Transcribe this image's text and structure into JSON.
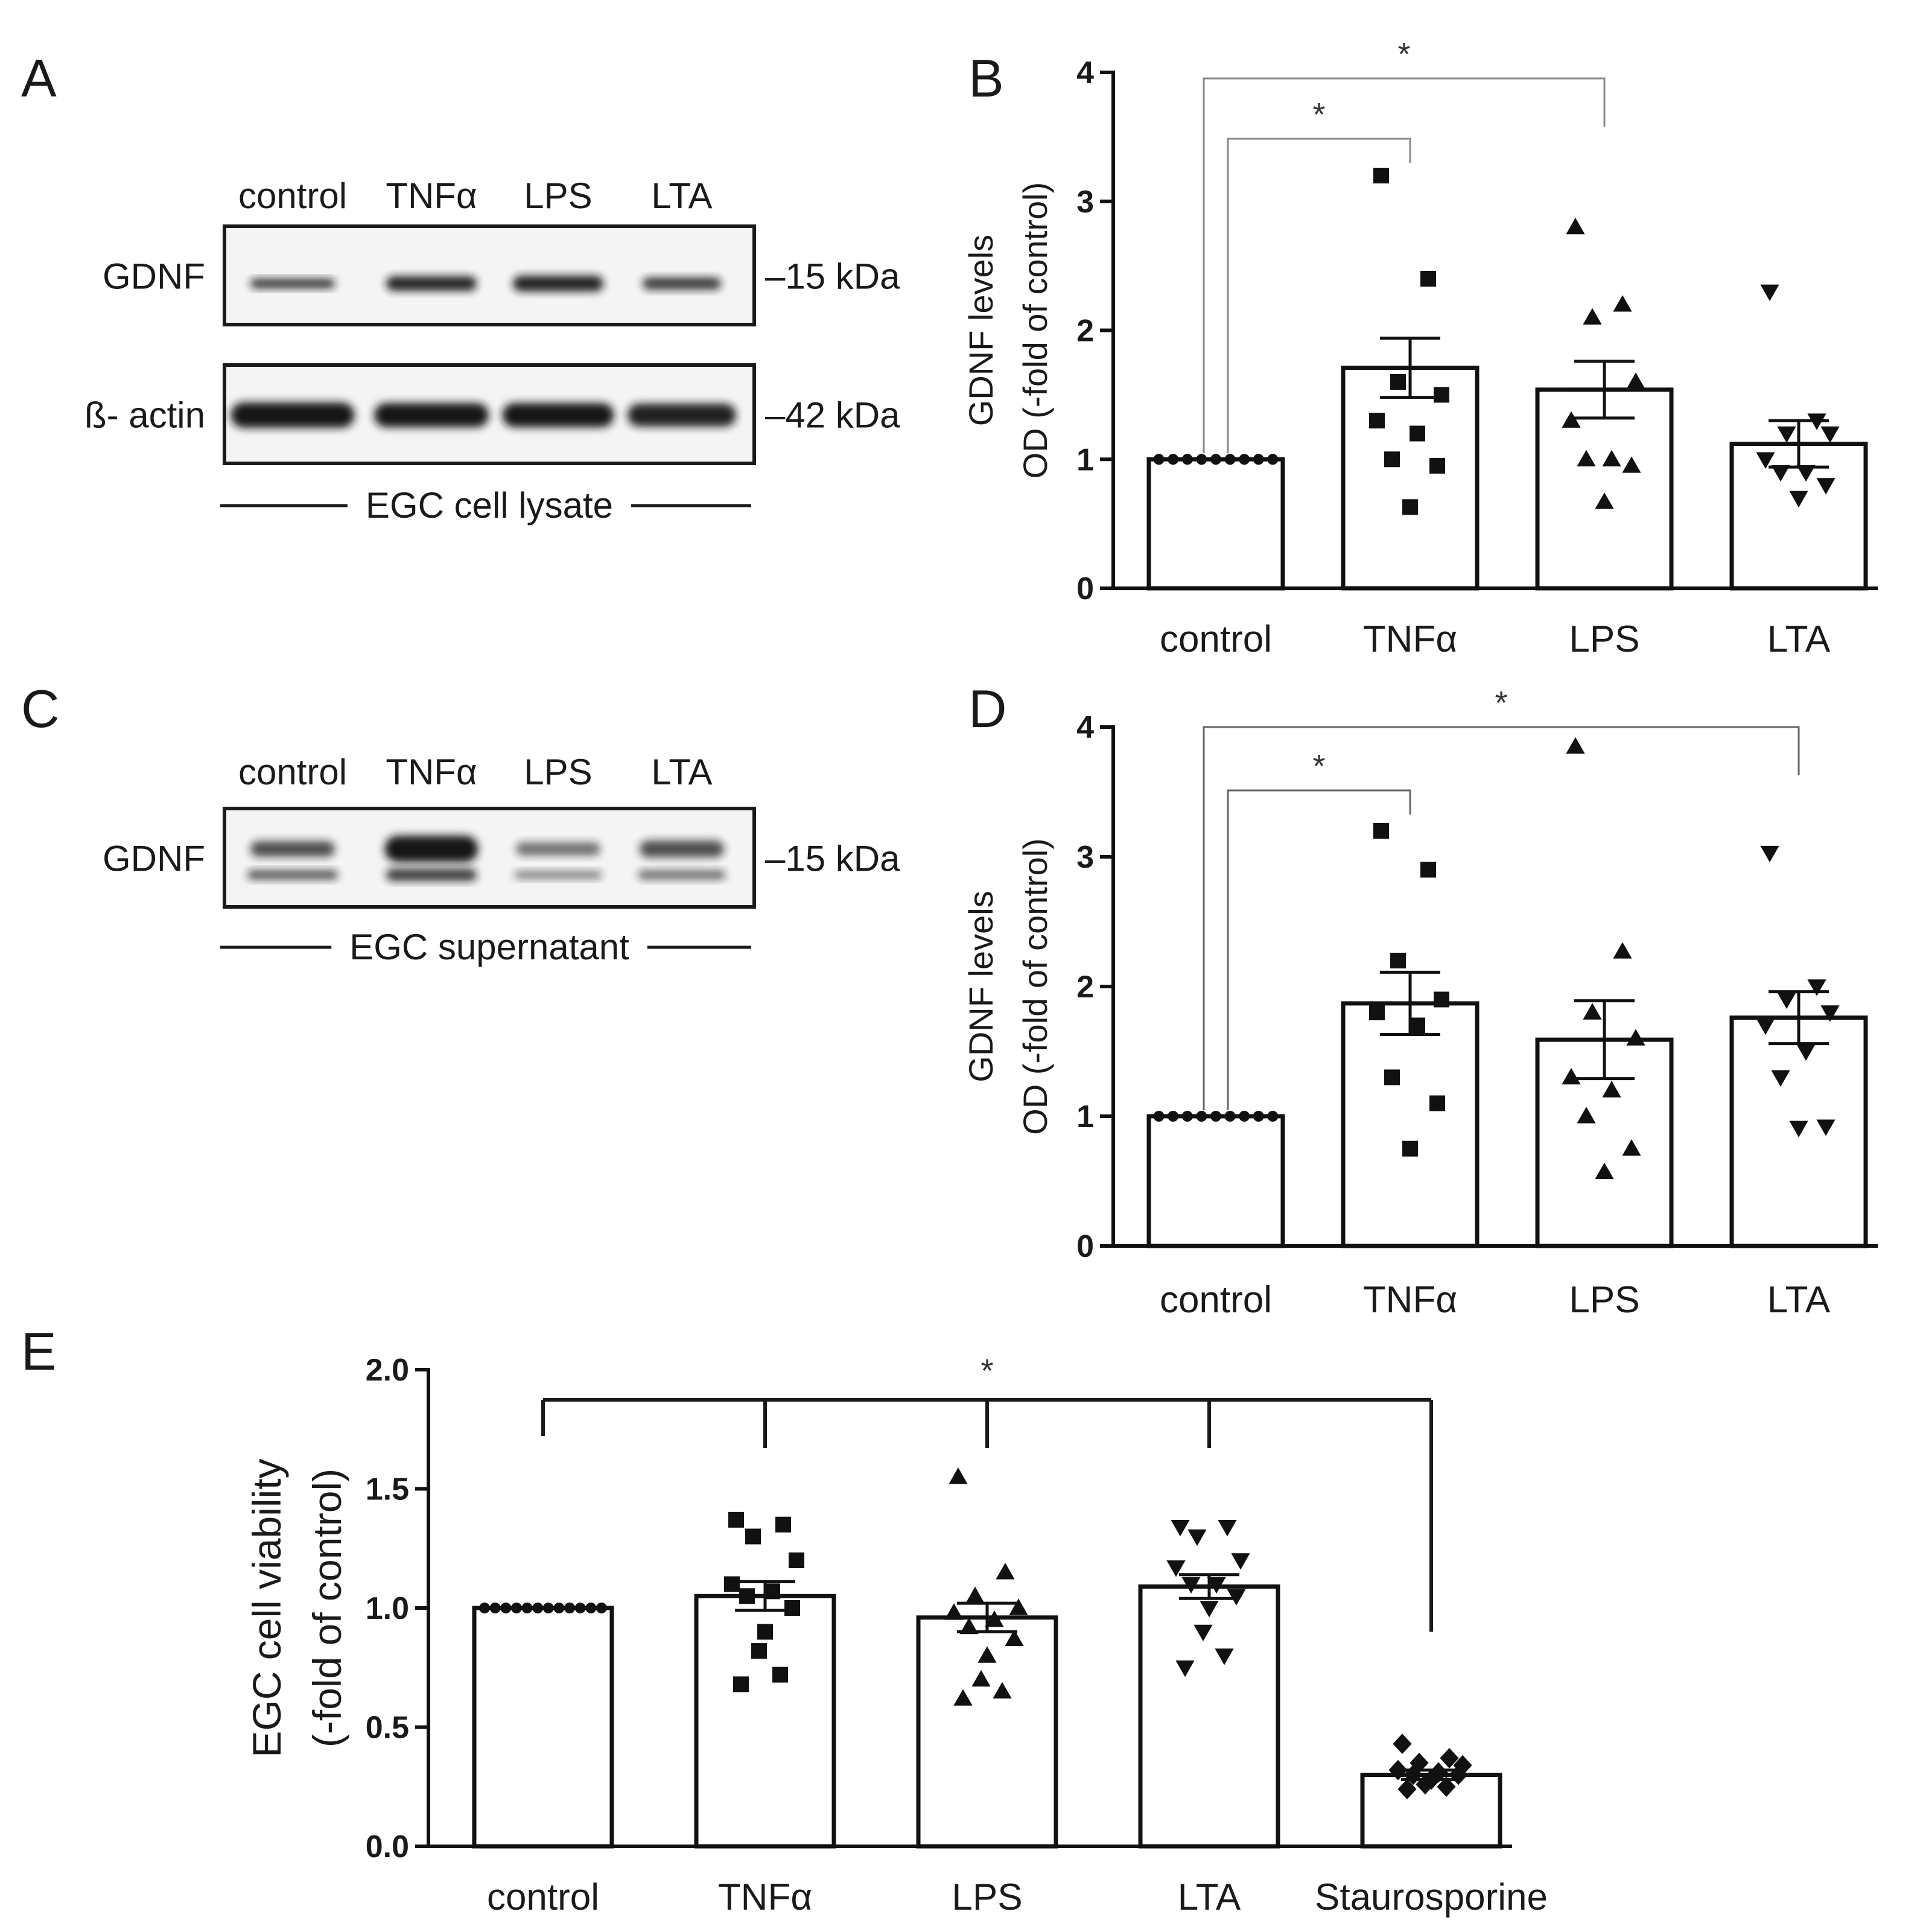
{
  "panel_letters": {
    "A": "A",
    "B": "B",
    "C": "C",
    "D": "D",
    "E": "E"
  },
  "blots": [
    {
      "id": "A",
      "lanes": [
        "control",
        "TNFα",
        "LPS",
        "LTA"
      ],
      "rows": [
        {
          "label": "GDNF",
          "marker": "–15 kDa"
        },
        {
          "label": "ß- actin",
          "marker": "–42 kDa"
        }
      ],
      "caption": "EGC cell lysate"
    },
    {
      "id": "C",
      "lanes": [
        "control",
        "TNFα",
        "LPS",
        "LTA"
      ],
      "rows": [
        {
          "label": "GDNF",
          "marker": "–15 kDa"
        }
      ],
      "caption": "EGC supernatant"
    }
  ],
  "chart_data": [
    {
      "id": "B",
      "type": "bar",
      "categories": [
        "control",
        "TNFα",
        "LPS",
        "LTA"
      ],
      "values": [
        1.0,
        1.71,
        1.54,
        1.12
      ],
      "sem": [
        0.0,
        0.23,
        0.22,
        0.18
      ],
      "points": [
        [
          1,
          1,
          1,
          1,
          1,
          1,
          1,
          1,
          1
        ],
        [
          3.2,
          2.4,
          1.6,
          1.5,
          1.3,
          1.2,
          1.0,
          0.95,
          0.63
        ],
        [
          2.8,
          2.2,
          2.1,
          1.6,
          1.3,
          1.0,
          1.0,
          0.95,
          0.67
        ],
        [
          2.3,
          1.3,
          1.2,
          1.2,
          1.0,
          0.9,
          0.9,
          0.8,
          0.7
        ]
      ],
      "markers": [
        "circle",
        "square",
        "triangle-up",
        "triangle-down"
      ],
      "ylabel": [
        "GDNF levels",
        "OD (-fold of control)"
      ],
      "ylim": [
        0,
        4
      ],
      "yticks": [
        "0",
        "1",
        "2",
        "3",
        "4"
      ],
      "significance": [
        {
          "from": 0,
          "to": 1,
          "label": "*"
        },
        {
          "from": 0,
          "to": 2,
          "label": "*"
        }
      ]
    },
    {
      "id": "D",
      "type": "bar",
      "categories": [
        "control",
        "TNFα",
        "LPS",
        "LTA"
      ],
      "values": [
        1.0,
        1.87,
        1.59,
        1.76
      ],
      "sem": [
        0.0,
        0.24,
        0.3,
        0.2
      ],
      "points": [
        [
          1,
          1,
          1,
          1,
          1,
          1,
          1,
          1,
          1
        ],
        [
          3.2,
          2.9,
          2.2,
          1.9,
          1.8,
          1.7,
          1.3,
          1.1,
          0.75
        ],
        [
          3.85,
          2.27,
          1.8,
          1.6,
          1.3,
          1.2,
          1.0,
          0.75,
          0.57
        ],
        [
          3.03,
          2.0,
          1.9,
          1.8,
          1.7,
          1.5,
          1.3,
          0.92,
          0.91
        ]
      ],
      "markers": [
        "circle",
        "square",
        "triangle-up",
        "triangle-down"
      ],
      "ylabel": [
        "GDNF levels",
        "OD (-fold of control)"
      ],
      "ylim": [
        0,
        4
      ],
      "yticks": [
        "0",
        "1",
        "2",
        "3",
        "4"
      ],
      "significance": [
        {
          "from": 0,
          "to": 1,
          "label": "*"
        },
        {
          "from": 0,
          "to": 3,
          "label": "*"
        }
      ]
    },
    {
      "id": "E",
      "type": "bar",
      "categories": [
        "control",
        "TNFα",
        "LPS",
        "LTA",
        "Staurosporine"
      ],
      "values": [
        1.0,
        1.05,
        0.96,
        1.09,
        0.3
      ],
      "sem": [
        0.0,
        0.06,
        0.06,
        0.05,
        0.02
      ],
      "points": [
        [
          1,
          1,
          1,
          1,
          1,
          1,
          1,
          1,
          1,
          1,
          1,
          1
        ],
        [
          1.37,
          1.35,
          1.3,
          1.2,
          1.1,
          1.07,
          1.05,
          1.0,
          0.9,
          0.82,
          0.72,
          0.68
        ],
        [
          1.55,
          1.15,
          1.05,
          1.0,
          0.98,
          0.95,
          0.92,
          0.87,
          0.8,
          0.7,
          0.65,
          0.62
        ],
        [
          1.34,
          1.34,
          1.3,
          1.2,
          1.17,
          1.1,
          1.1,
          1.05,
          1.0,
          0.9,
          0.8,
          0.75
        ],
        [
          0.43,
          0.37,
          0.35,
          0.34,
          0.32,
          0.31,
          0.3,
          0.3,
          0.28,
          0.26,
          0.25,
          0.24
        ]
      ],
      "markers": [
        "circle",
        "square",
        "triangle-up",
        "triangle-down",
        "diamond"
      ],
      "ylabel": [
        "EGC cell viability",
        "(-fold of control)"
      ],
      "ylim": [
        0,
        2
      ],
      "yticks": [
        "0.0",
        "0.5",
        "1.0",
        "1.5",
        "2.0"
      ],
      "significance": [
        {
          "from": [
            0,
            1,
            2,
            3
          ],
          "to": 4,
          "label": "*"
        }
      ]
    }
  ]
}
